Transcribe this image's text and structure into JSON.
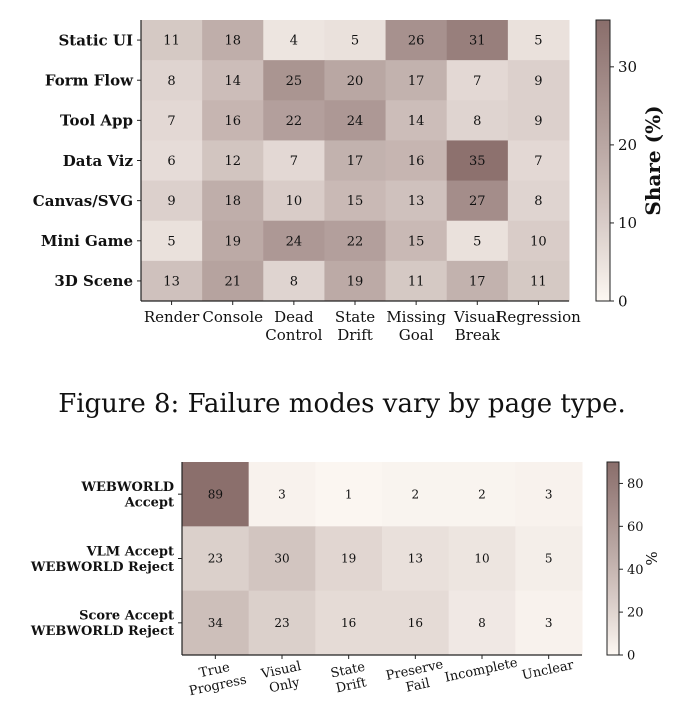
{
  "chart_data": [
    {
      "type": "heatmap",
      "rows": [
        "Static UI",
        "Form Flow",
        "Tool App",
        "Data Viz",
        "Canvas/SVG",
        "Mini Game",
        "3D Scene"
      ],
      "columns": [
        [
          "Render"
        ],
        [
          "Console"
        ],
        [
          "Dead",
          "Control"
        ],
        [
          "State",
          "Drift"
        ],
        [
          "Missing",
          "Goal"
        ],
        [
          "Visual",
          "Break"
        ],
        [
          "Regression"
        ]
      ],
      "values": [
        [
          11,
          18,
          4,
          5,
          26,
          31,
          5
        ],
        [
          8,
          14,
          25,
          20,
          17,
          7,
          9
        ],
        [
          7,
          16,
          22,
          24,
          14,
          8,
          9
        ],
        [
          6,
          12,
          7,
          17,
          16,
          35,
          7
        ],
        [
          9,
          18,
          10,
          15,
          13,
          27,
          8
        ],
        [
          5,
          19,
          24,
          22,
          15,
          5,
          10
        ],
        [
          13,
          21,
          8,
          19,
          11,
          17,
          11
        ]
      ],
      "colorbar": {
        "label": "Share (%)",
        "range": [
          0,
          36
        ],
        "ticks": [
          0,
          10,
          20,
          30
        ]
      },
      "colors": {
        "low": "#fdf8f3",
        "high": "#8a6e6b"
      }
    },
    {
      "type": "heatmap",
      "rows": [
        [
          "WEBWORLD",
          "Accept"
        ],
        [
          "VLM Accept",
          "WEBWORLD Reject"
        ],
        [
          "Score Accept",
          "WEBWORLD Reject"
        ]
      ],
      "columns": [
        [
          "True",
          "Progress"
        ],
        [
          "Visual",
          "Only"
        ],
        [
          "State",
          "Drift"
        ],
        [
          "Preserve",
          "Fail"
        ],
        [
          "Incomplete"
        ],
        [
          "Unclear"
        ]
      ],
      "values": [
        [
          89,
          3,
          1,
          2,
          2,
          3
        ],
        [
          23,
          30,
          19,
          13,
          10,
          5
        ],
        [
          34,
          23,
          16,
          16,
          8,
          3
        ]
      ],
      "colorbar": {
        "label": "%",
        "range": [
          0,
          90
        ],
        "ticks": [
          0,
          20,
          40,
          60,
          80
        ]
      },
      "colors": {
        "low": "#fdf8f3",
        "high": "#8a6e6b"
      }
    }
  ],
  "caption": "Figure 8: Failure modes vary by page type."
}
